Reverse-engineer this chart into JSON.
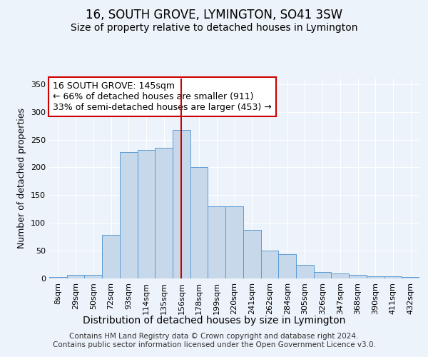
{
  "title": "16, SOUTH GROVE, LYMINGTON, SO41 3SW",
  "subtitle": "Size of property relative to detached houses in Lymington",
  "xlabel": "Distribution of detached houses by size in Lymington",
  "ylabel": "Number of detached properties",
  "categories": [
    "8sqm",
    "29sqm",
    "50sqm",
    "72sqm",
    "93sqm",
    "114sqm",
    "135sqm",
    "156sqm",
    "178sqm",
    "199sqm",
    "220sqm",
    "241sqm",
    "262sqm",
    "284sqm",
    "305sqm",
    "326sqm",
    "347sqm",
    "368sqm",
    "390sqm",
    "411sqm",
    "432sqm"
  ],
  "bar_heights": [
    2,
    7,
    7,
    78,
    227,
    232,
    235,
    267,
    200,
    130,
    130,
    88,
    50,
    44,
    25,
    12,
    9,
    7,
    4,
    4,
    2
  ],
  "bar_color": "#c8d8eb",
  "bar_edge_color": "#5b9bd5",
  "vline_color": "#cc0000",
  "vline_x_index": 7.0,
  "annotation_line1": "16 SOUTH GROVE: 145sqm",
  "annotation_line2": "← 66% of detached houses are smaller (911)",
  "annotation_line3": "33% of semi-detached houses are larger (453) →",
  "ylim_max": 360,
  "yticks": [
    0,
    50,
    100,
    150,
    200,
    250,
    300,
    350
  ],
  "footer_line1": "Contains HM Land Registry data © Crown copyright and database right 2024.",
  "footer_line2": "Contains public sector information licensed under the Open Government Licence v3.0.",
  "bg_color": "#edf3fa",
  "title_fontsize": 12,
  "subtitle_fontsize": 10,
  "ylabel_fontsize": 9,
  "xlabel_fontsize": 10,
  "tick_fontsize": 8,
  "footer_fontsize": 7.5,
  "ann_fontsize": 9
}
